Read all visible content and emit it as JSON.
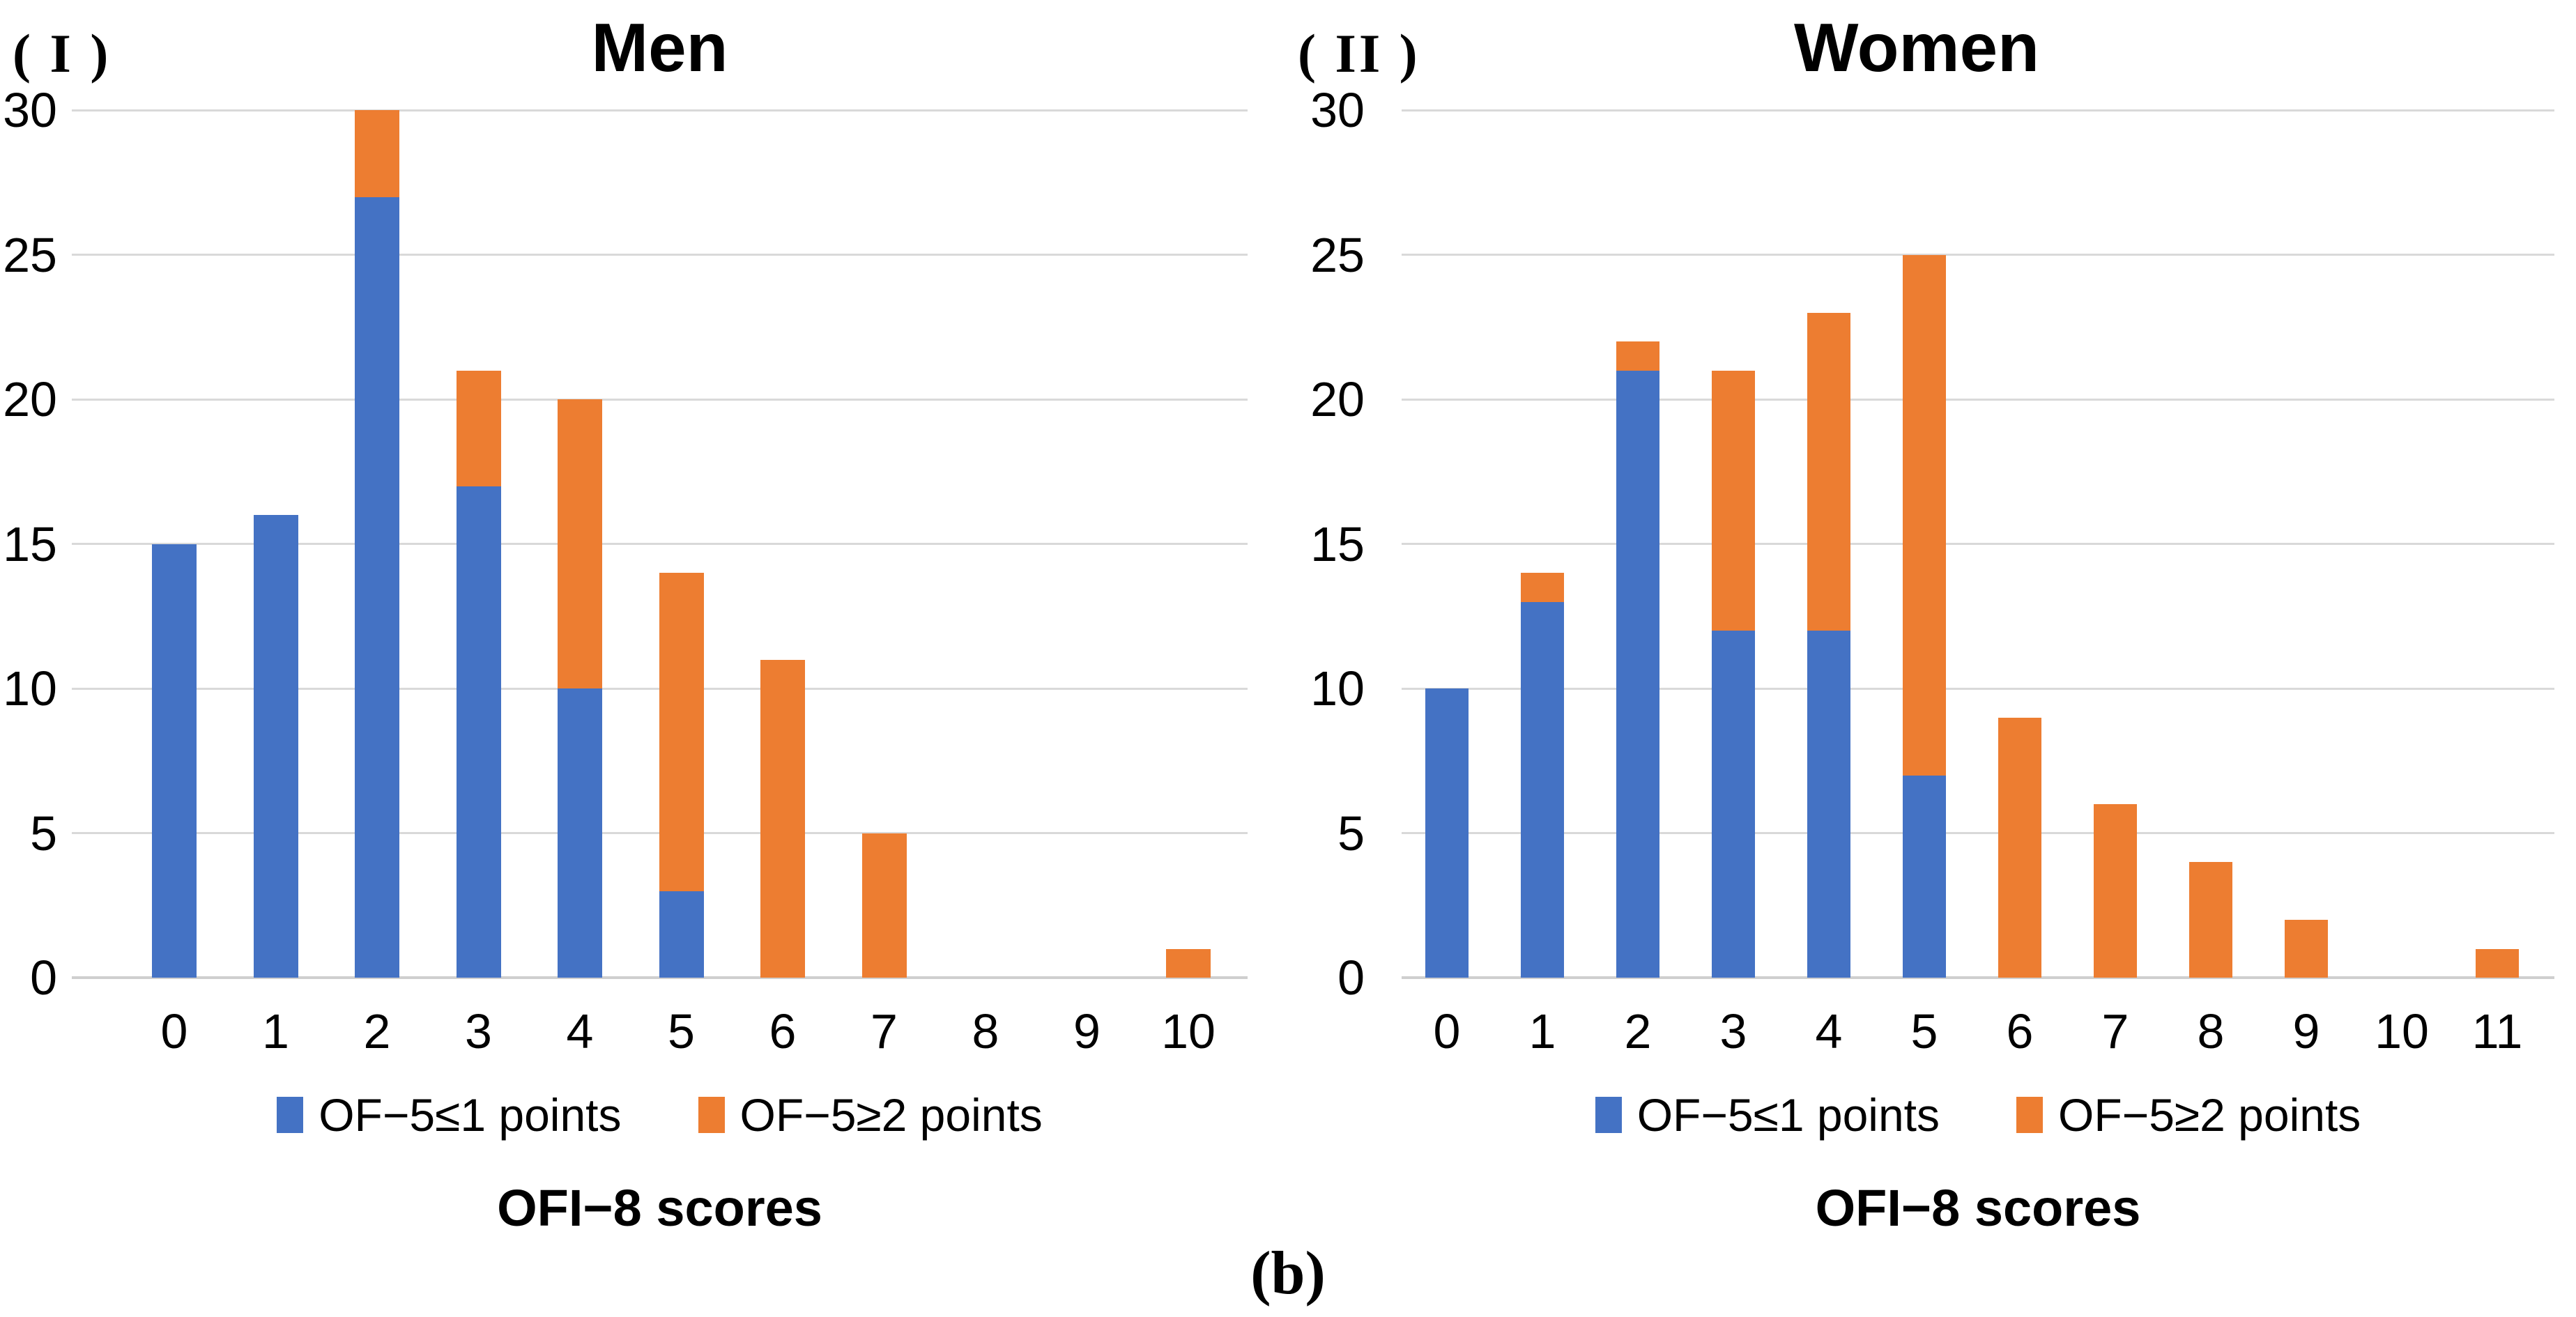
{
  "caption": "(b)",
  "legend": {
    "series1_label": "OF−5≤1 points",
    "series2_label": "OF−5≥2 points"
  },
  "colors": {
    "series1_blue": "#4472C4",
    "series2_orange": "#ED7D31",
    "gridline": "#D9D9D9",
    "axis_line": "#CFCFCF",
    "text": "#000000"
  },
  "chart_data": [
    {
      "type": "bar",
      "subtype": "stacked-vertical",
      "panel_label": "( I )",
      "title": "Men",
      "xlabel": "OFI−8 scores",
      "ylabel": "",
      "categories": [
        "0",
        "1",
        "2",
        "3",
        "4",
        "5",
        "6",
        "7",
        "8",
        "9",
        "10"
      ],
      "series": [
        {
          "name": "OF−5≤1 points",
          "color": "#4472C4",
          "values": [
            15,
            16,
            27,
            17,
            10,
            3,
            0,
            0,
            0,
            0,
            0
          ]
        },
        {
          "name": "OF−5≥2 points",
          "color": "#ED7D31",
          "values": [
            0,
            0,
            3,
            4,
            10,
            11,
            11,
            5,
            0,
            0,
            1
          ]
        }
      ],
      "stacked_totals": [
        15,
        16,
        30,
        21,
        20,
        14,
        11,
        5,
        0,
        0,
        1
      ],
      "y_ticks": [
        0,
        5,
        10,
        15,
        20,
        25,
        30
      ],
      "ylim": [
        0,
        30
      ],
      "grid": "horizontal",
      "legend_position": "bottom"
    },
    {
      "type": "bar",
      "subtype": "stacked-vertical",
      "panel_label": "( II )",
      "title": "Women",
      "xlabel": "OFI−8 scores",
      "ylabel": "",
      "categories": [
        "0",
        "1",
        "2",
        "3",
        "4",
        "5",
        "6",
        "7",
        "8",
        "9",
        "10",
        "11"
      ],
      "series": [
        {
          "name": "OF−5≤1 points",
          "color": "#4472C4",
          "values": [
            10,
            13,
            21,
            12,
            12,
            7,
            0,
            0,
            0,
            0,
            0,
            0
          ]
        },
        {
          "name": "OF−5≥2 points",
          "color": "#ED7D31",
          "values": [
            0,
            1,
            1,
            9,
            11,
            18,
            9,
            6,
            4,
            2,
            0,
            1
          ]
        }
      ],
      "stacked_totals": [
        10,
        14,
        22,
        21,
        23,
        25,
        9,
        6,
        4,
        2,
        0,
        1
      ],
      "y_ticks": [
        0,
        5,
        10,
        15,
        20,
        25,
        30
      ],
      "ylim": [
        0,
        30
      ],
      "grid": "horizontal",
      "legend_position": "bottom"
    }
  ]
}
